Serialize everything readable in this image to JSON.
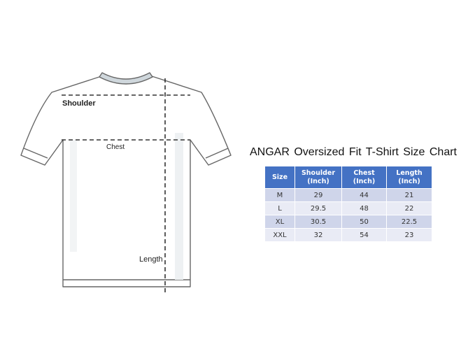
{
  "diagram": {
    "labels": {
      "shoulder": "Shoulder",
      "chest": "Chest",
      "length": "Length"
    }
  },
  "title": "ANGAR Oversized Fit T-Shirt Size Chart",
  "table": {
    "headers": [
      [
        "Size"
      ],
      [
        "Shoulder",
        "(Inch)"
      ],
      [
        "Chest",
        "(Inch)"
      ],
      [
        "Length",
        "(Inch)"
      ]
    ],
    "rows": [
      [
        "M",
        "29",
        "44",
        "21"
      ],
      [
        "L",
        "29.5",
        "48",
        "22"
      ],
      [
        "XL",
        "30.5",
        "50",
        "22.5"
      ],
      [
        "XXL",
        "32",
        "54",
        "23"
      ]
    ]
  },
  "colors": {
    "header": "#4472c4",
    "row_odd": "#cfd5ea",
    "row_even": "#e9ebf5"
  }
}
